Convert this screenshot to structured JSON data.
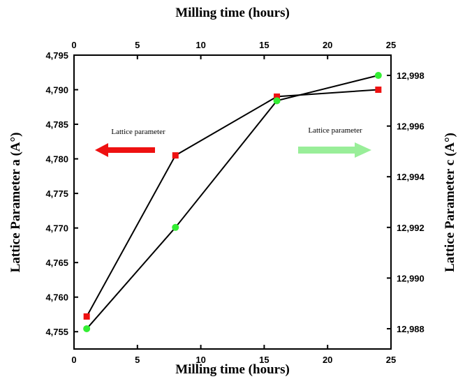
{
  "chart_data": {
    "type": "line",
    "x_axis": {
      "label": "Milling time (hours)",
      "range": [
        0,
        25
      ],
      "ticks": [
        "0",
        "5",
        "10",
        "15",
        "20",
        "25"
      ]
    },
    "x2_axis": {
      "label": "Milling time (hours)",
      "ticks": [
        "0",
        "5",
        "10",
        "15",
        "20",
        "25"
      ]
    },
    "y_axis": {
      "label": "Lattice Parameter a (A°)",
      "range": [
        4.7525,
        4.795
      ],
      "ticks": [
        4.755,
        4.76,
        4.765,
        4.77,
        4.775,
        4.78,
        4.785,
        4.79,
        4.795
      ],
      "tick_labels": [
        "4,755",
        "4,760",
        "4,765",
        "4,770",
        "4,775",
        "4,780",
        "4,785",
        "4,790",
        "4,795"
      ]
    },
    "y2_axis": {
      "label": "Lattice Parameter c (A°)",
      "range": [
        12.9872,
        12.9988
      ],
      "ticks": [
        12.988,
        12.99,
        12.992,
        12.994,
        12.996,
        12.998
      ],
      "tick_labels": [
        "12,988",
        "12,990",
        "12,992",
        "12,994",
        "12,996",
        "12,998"
      ]
    },
    "series": [
      {
        "axis": "left",
        "color": "#ee1111",
        "marker": "square",
        "x": [
          1,
          8,
          16,
          24
        ],
        "y": [
          4.7572,
          4.7805,
          4.789,
          4.79
        ]
      },
      {
        "axis": "right",
        "color": "#33ee33",
        "marker": "circle",
        "x": [
          1,
          8,
          16,
          24
        ],
        "y": [
          12.988,
          12.992,
          12.997,
          12.998
        ]
      }
    ],
    "annotations": [
      {
        "text": "Lattice parameter",
        "arrow": "left",
        "color": "#ee1111"
      },
      {
        "text": "Lattice parameter",
        "arrow": "right",
        "color": "#99ee99"
      }
    ]
  }
}
